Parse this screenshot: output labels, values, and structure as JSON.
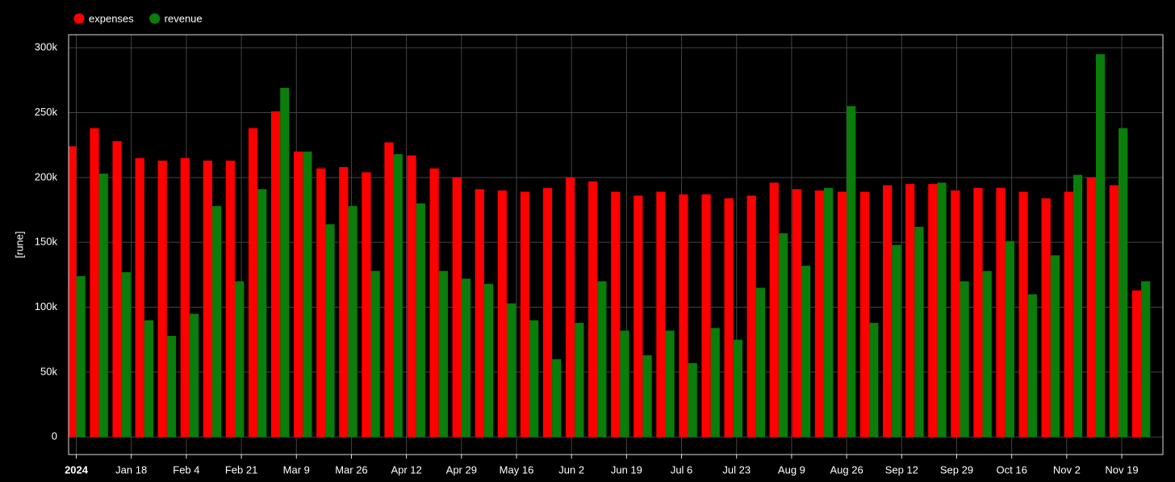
{
  "chart_data": {
    "type": "bar",
    "y_label": "[rune]",
    "x": [
      "2024-01-01",
      "2024-01-08",
      "2024-01-15",
      "2024-01-22",
      "2024-01-29",
      "2024-02-05",
      "2024-02-12",
      "2024-02-19",
      "2024-02-26",
      "2024-03-04",
      "2024-03-11",
      "2024-03-18",
      "2024-03-25",
      "2024-04-01",
      "2024-04-08",
      "2024-04-15",
      "2024-04-22",
      "2024-04-29",
      "2024-05-06",
      "2024-05-13",
      "2024-05-20",
      "2024-05-27",
      "2024-06-03",
      "2024-06-10",
      "2024-06-17",
      "2024-06-24",
      "2024-07-01",
      "2024-07-08",
      "2024-07-15",
      "2024-07-22",
      "2024-07-29",
      "2024-08-05",
      "2024-08-12",
      "2024-08-19",
      "2024-08-26",
      "2024-09-02",
      "2024-09-09",
      "2024-09-16",
      "2024-09-23",
      "2024-09-30",
      "2024-10-07",
      "2024-10-14",
      "2024-10-21",
      "2024-10-28",
      "2024-11-04",
      "2024-11-11",
      "2024-11-18",
      "2024-11-25"
    ],
    "series": [
      {
        "name": "expenses",
        "color": "#ff0000",
        "values": [
          224000,
          238000,
          228000,
          215000,
          213000,
          215000,
          213000,
          213000,
          238000,
          251000,
          220000,
          207000,
          208000,
          204000,
          227000,
          217000,
          207000,
          200000,
          191000,
          190000,
          189000,
          192000,
          200000,
          197000,
          189000,
          186000,
          189000,
          187000,
          187000,
          184000,
          186000,
          196000,
          191000,
          190000,
          189000,
          189000,
          194000,
          195000,
          195000,
          190000,
          192000,
          192000,
          189000,
          184000,
          189000,
          200000,
          194000,
          113000
        ]
      },
      {
        "name": "revenue",
        "color": "#0a7d0a",
        "values": [
          124000,
          203000,
          127000,
          90000,
          78000,
          95000,
          178000,
          120000,
          191000,
          269000,
          220000,
          164000,
          178000,
          128000,
          218000,
          180000,
          128000,
          122000,
          118000,
          103000,
          90000,
          60000,
          88000,
          120000,
          82000,
          63000,
          82000,
          57000,
          84000,
          75000,
          115000,
          157000,
          132000,
          192000,
          255000,
          88000,
          148000,
          162000,
          196000,
          120000,
          128000,
          151000,
          110000,
          140000,
          202000,
          295000,
          238000,
          120000
        ]
      }
    ],
    "xlim": [
      "2023-12-29T15:00:00Z",
      "2024-12-01T17:00:00Z"
    ],
    "xticks": [
      {
        "value": "2024-01-01",
        "label": "2024"
      },
      {
        "value": "2024-01-18",
        "label": "Jan 18"
      },
      {
        "value": "2024-02-04",
        "label": "Feb 4"
      },
      {
        "value": "2024-02-21",
        "label": "Feb 21"
      },
      {
        "value": "2024-03-09",
        "label": "Mar 9"
      },
      {
        "value": "2024-03-26",
        "label": "Mar 26"
      },
      {
        "value": "2024-04-12",
        "label": "Apr 12"
      },
      {
        "value": "2024-04-29",
        "label": "Apr 29"
      },
      {
        "value": "2024-05-16",
        "label": "May 16"
      },
      {
        "value": "2024-06-02",
        "label": "Jun 2"
      },
      {
        "value": "2024-06-19",
        "label": "Jun 19"
      },
      {
        "value": "2024-07-06",
        "label": "Jul 6"
      },
      {
        "value": "2024-07-23",
        "label": "Jul 23"
      },
      {
        "value": "2024-08-09",
        "label": "Aug 9"
      },
      {
        "value": "2024-08-26",
        "label": "Aug 26"
      },
      {
        "value": "2024-09-12",
        "label": "Sep 12"
      },
      {
        "value": "2024-09-29",
        "label": "Sep 29"
      },
      {
        "value": "2024-10-16",
        "label": "Oct 16"
      },
      {
        "value": "2024-11-02",
        "label": "Nov 2"
      },
      {
        "value": "2024-11-19",
        "label": "Nov 19"
      }
    ],
    "ylim": [
      -13500,
      310000
    ],
    "yticks": [
      0,
      {
        "value": 50000,
        "label": "50k"
      },
      {
        "value": 100000,
        "label": "100k"
      },
      {
        "value": 150000,
        "label": "150k"
      },
      {
        "value": 200000,
        "label": "200k"
      },
      {
        "value": 250000,
        "label": "250k"
      },
      {
        "value": 300000,
        "label": "300k"
      }
    ],
    "grid": true,
    "legend": "top-left"
  }
}
